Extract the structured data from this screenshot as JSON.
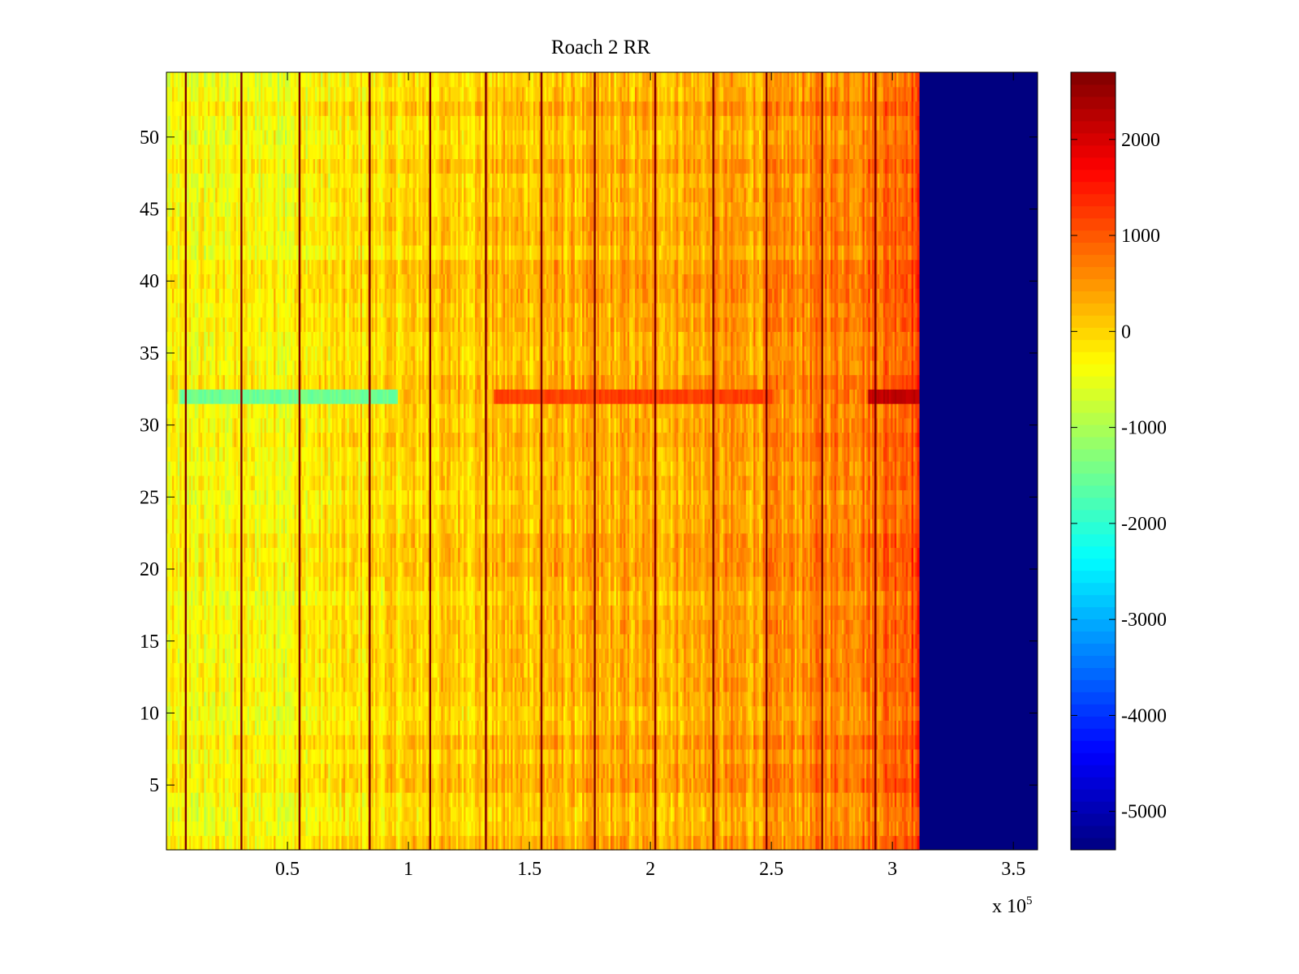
{
  "chart_data": {
    "type": "heatmap",
    "title": "Roach 2 RR",
    "xlabel": "",
    "ylabel": "",
    "x_exponent_label": "x 10",
    "x_exponent_sup": "5",
    "xlim": [
      0,
      3.6
    ],
    "ylim": [
      0.5,
      54.5
    ],
    "x_ticks": [
      0.5,
      1,
      1.5,
      2,
      2.5,
      3,
      3.5
    ],
    "x_tick_labels": [
      "0.5",
      "1",
      "1.5",
      "2",
      "2.5",
      "3",
      "3.5"
    ],
    "y_ticks": [
      5,
      10,
      15,
      20,
      25,
      30,
      35,
      40,
      45,
      50
    ],
    "y_tick_labels": [
      "5",
      "10",
      "15",
      "20",
      "25",
      "30",
      "35",
      "40",
      "45",
      "50"
    ],
    "rows": 54,
    "colorbar": {
      "colormap": "jet",
      "min": -5400,
      "max": 2700,
      "ticks": [
        -5000,
        -4000,
        -3000,
        -2000,
        -1000,
        0,
        1000,
        2000
      ],
      "tick_labels": [
        "-5000",
        "-4000",
        "-3000",
        "-2000",
        "-1000",
        "0",
        "1000",
        "2000"
      ]
    },
    "data_end_x": 3.11,
    "fill_value_after_end": -5400,
    "baseline_trend": [
      {
        "x": 0.0,
        "value": -400
      },
      {
        "x": 0.5,
        "value": -300
      },
      {
        "x": 1.0,
        "value": 0
      },
      {
        "x": 1.5,
        "value": 200
      },
      {
        "x": 2.0,
        "value": 300
      },
      {
        "x": 2.5,
        "value": 450
      },
      {
        "x": 2.9,
        "value": 800
      },
      {
        "x": 3.1,
        "value": 1100
      }
    ],
    "dark_vertical_lines_x": [
      0.08,
      0.31,
      0.55,
      0.84,
      1.09,
      1.32,
      1.55,
      1.77,
      2.02,
      2.26,
      2.48,
      2.71,
      2.93
    ],
    "highlight_rows": [
      {
        "row": 32,
        "x_from": 0.05,
        "x_to": 0.95,
        "value": -1500
      },
      {
        "row": 32,
        "x_from": 1.35,
        "x_to": 2.5,
        "value": 1200
      },
      {
        "row": 32,
        "x_from": 2.9,
        "x_to": 3.11,
        "value": 2200
      }
    ]
  }
}
